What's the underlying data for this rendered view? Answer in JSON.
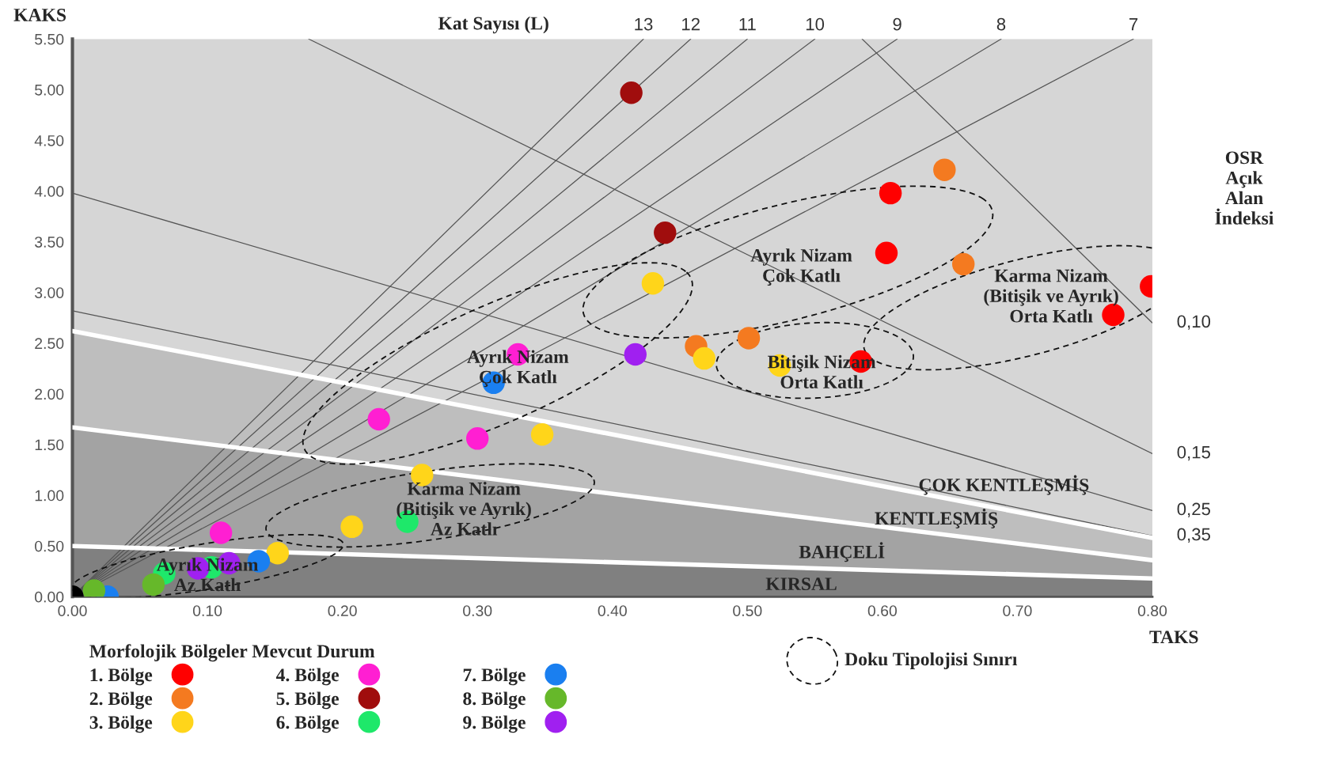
{
  "chart_data": {
    "type": "scatter",
    "xlabel": "TAKS",
    "ylabel": "KAKS",
    "legend_title": "Morfolojik Bölgeler Mevcut Durum",
    "legend": "bottom left",
    "grid": false,
    "stacked": true,
    "xlim": [
      0,
      0.8
    ],
    "ylim": [
      0,
      5.5
    ],
    "xticks": [
      {
        "value": 0,
        "label": "0.00"
      },
      {
        "value": 0.1,
        "label": "0.10"
      },
      {
        "value": 0.2,
        "label": "0.20"
      },
      {
        "value": 0.3,
        "label": "0.30"
      },
      {
        "value": 0.4,
        "label": "0.40"
      },
      {
        "value": 0.5,
        "label": "0.50"
      },
      {
        "value": 0.6,
        "label": "0.60"
      },
      {
        "value": 0.7,
        "label": "0.70"
      },
      {
        "value": 0.8,
        "label": "0.80"
      }
    ],
    "yticks": [
      {
        "value": 0,
        "label": "0.00"
      },
      {
        "value": 0.5,
        "label": "0.50"
      },
      {
        "value": 1,
        "label": "1.00"
      },
      {
        "value": 1.5,
        "label": "1.50"
      },
      {
        "value": 2,
        "label": "2.00"
      },
      {
        "value": 2.5,
        "label": "2.50"
      },
      {
        "value": 3,
        "label": "3.00"
      },
      {
        "value": 3.5,
        "label": "3.50"
      },
      {
        "value": 4,
        "label": "4.00"
      },
      {
        "value": 4.5,
        "label": "4.50"
      },
      {
        "value": 5,
        "label": "5.00"
      },
      {
        "value": 5.5,
        "label": "5.50"
      }
    ],
    "series": [
      {
        "type": "area",
        "color": "#808080",
        "x": [
          0,
          0.8
        ],
        "values": [
          0.5,
          0.18
        ]
      },
      {
        "type": "area",
        "color": "#a3a3a3",
        "x": [
          0,
          0.8
        ],
        "values": [
          1.17,
          0.18
        ]
      },
      {
        "type": "area",
        "color": "#bebebe",
        "x": [
          0,
          0.8
        ],
        "values": [
          0.95,
          0.22
        ]
      },
      {
        "type": "area",
        "color": "#d6d6d6",
        "x": [
          0,
          0.8
        ],
        "values": [
          2.88,
          4.92
        ]
      },
      {
        "type": "line",
        "name": "13",
        "color": "#555555",
        "x": [
          0,
          0.423
        ],
        "values": [
          0,
          5.5
        ]
      },
      {
        "type": "line",
        "name": "12",
        "color": "#555555",
        "x": [
          0,
          0.458
        ],
        "values": [
          0,
          5.5
        ]
      },
      {
        "type": "line",
        "name": "11",
        "color": "#555555",
        "x": [
          0,
          0.5
        ],
        "values": [
          0,
          5.5
        ]
      },
      {
        "type": "line",
        "name": "10",
        "color": "#555555",
        "x": [
          0,
          0.55
        ],
        "values": [
          0,
          5.5
        ]
      },
      {
        "type": "line",
        "name": "9",
        "color": "#555555",
        "x": [
          0,
          0.611
        ],
        "values": [
          0,
          5.5
        ]
      },
      {
        "type": "line",
        "name": "8",
        "color": "#555555",
        "x": [
          0,
          0.688
        ],
        "values": [
          0,
          5.5
        ]
      },
      {
        "type": "line",
        "name": "7",
        "color": "#555555",
        "x": [
          0,
          0.786
        ],
        "values": [
          0,
          5.5
        ]
      },
      {
        "type": "line",
        "name": "0,10",
        "color": "#555555",
        "x": [
          0.585,
          0.8
        ],
        "values": [
          5.5,
          2.7
        ]
      },
      {
        "type": "line",
        "name": "0,15",
        "color": "#555555",
        "x": [
          0.175,
          0.8
        ],
        "values": [
          5.5,
          1.41
        ]
      },
      {
        "type": "line",
        "name": "0,25",
        "color": "#555555",
        "x": [
          0,
          0.8
        ],
        "values": [
          3.98,
          0.85
        ]
      },
      {
        "type": "line",
        "name": "0,35",
        "color": "#555555",
        "x": [
          0,
          0.8
        ],
        "values": [
          2.82,
          0.6
        ]
      },
      {
        "name": "1. Bölge",
        "color": "#ff0000",
        "x": [
          0.606,
          0.603,
          0.584,
          0.771,
          0.799
        ],
        "values": [
          3.98,
          3.39,
          2.32,
          2.78,
          3.06
        ]
      },
      {
        "name": "2. Bölge",
        "color": "#f47a20",
        "x": [
          0.646,
          0.66,
          0.462,
          0.501
        ],
        "values": [
          4.21,
          3.28,
          2.47,
          2.55
        ]
      },
      {
        "name": "3. Bölge",
        "color": "#ffd51a",
        "x": [
          0.43,
          0.468,
          0.524,
          0.348,
          0.259,
          0.207,
          0.152
        ],
        "values": [
          3.09,
          2.35,
          2.28,
          1.6,
          1.2,
          0.69,
          0.43
        ]
      },
      {
        "name": "4. Bölge",
        "color": "#ff1fd2",
        "x": [
          0.33,
          0.227,
          0.3,
          0.11
        ],
        "values": [
          2.39,
          1.75,
          1.56,
          0.63
        ]
      },
      {
        "name": "5. Bölge",
        "color": "#a00d0d",
        "x": [
          0.414,
          0.439
        ],
        "values": [
          4.97,
          3.59
        ]
      },
      {
        "name": "6. Bölge",
        "color": "#1ee86a",
        "x": [
          0.248,
          0.068,
          0.103
        ],
        "values": [
          0.74,
          0.23,
          0.29
        ]
      },
      {
        "name": "7. Bölge",
        "color": "#1a7ff0",
        "x": [
          0.312,
          0.138,
          0.026
        ],
        "values": [
          2.11,
          0.35,
          0.0
        ]
      },
      {
        "name": "8. Bölge",
        "color": "#66b82a",
        "x": [
          0.016,
          0.06
        ],
        "values": [
          0.06,
          0.12
        ]
      },
      {
        "name": "9. Bölge",
        "color": "#a020f0",
        "x": [
          0.417,
          0.093,
          0.116
        ],
        "values": [
          2.39,
          0.28,
          0.33
        ]
      },
      {
        "color": "#000000",
        "x": [
          0
        ],
        "values": [
          0
        ]
      }
    ],
    "annotations": [
      "Kat Sayısı (L)",
      "OSR\nAçık\nAlan\nİndeksi",
      "Doku Tipolojisi Sınırı",
      "Ayrık Nizam\nÇok Katlı",
      "Karma Nizam\n(Bitişik ve Ayrık)\nOrta Katlı",
      "Ayrık Nizam\nÇok Katlı",
      "Bitişik Nizam\nOrta Katlı",
      "Karma Nizam\n(Bitişik ve Ayrık)\nAz Katlı",
      "Ayrık Nizam\nAz Katlı",
      "ÇOK KENTLEŞMİŞ",
      "KENTLEŞMİŞ",
      "BAHÇELİ",
      "KIRSAL"
    ]
  }
}
